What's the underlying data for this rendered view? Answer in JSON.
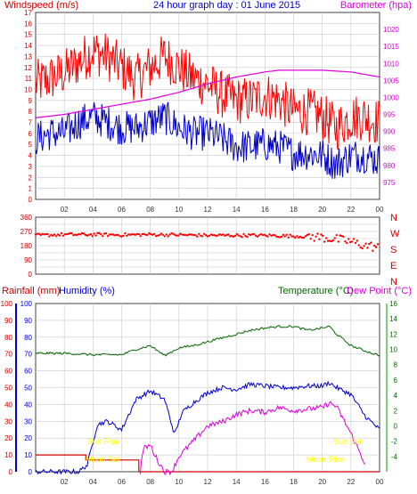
{
  "header": {
    "windspeed_label": "Windspeed (m/s)",
    "title": "24 hour graph day : 01 June 2015",
    "barometer_label": "Barometer (hpa)"
  },
  "bottom_header": {
    "rainfall_label": "Rainfall (mm)",
    "humidity_label": "Humidity (%)",
    "temperature_label": "Temperature (°C)",
    "dewpoint_label": "Dew Point (°C)"
  },
  "annotations": {
    "sunrise": "Sun Rise",
    "moonset": "Moon Set",
    "sunset": "Sun Set",
    "moonrise": "Moon Rise"
  },
  "colors": {
    "wind_gust": "#ff0000",
    "wind_avg": "#0000cc",
    "barometer": "#dd00dd",
    "direction": "#ff0000",
    "rain": "#cc0000",
    "humidity": "#0000cc",
    "temperature": "#006600",
    "dewpoint": "#dd00dd",
    "annotation": "#ffff00",
    "grid": "#c8c8c8"
  },
  "chart_data": [
    {
      "type": "line",
      "title": "24 hour graph day : 01 June 2015",
      "x_tick_labels": [
        "02",
        "04",
        "06",
        "08",
        "10",
        "12",
        "14",
        "16",
        "18",
        "20",
        "22",
        "00"
      ],
      "x_hour_range": [
        0,
        24
      ],
      "y_left": {
        "label": "Windspeed (m/s)",
        "range": [
          0,
          17
        ],
        "ticks": [
          0,
          1,
          2,
          3,
          4,
          5,
          6,
          7,
          8,
          9,
          10,
          11,
          12,
          13,
          14,
          15,
          16,
          17
        ]
      },
      "y_right": {
        "label": "Barometer (hpa)",
        "range": [
          970,
          1025
        ],
        "ticks": [
          975,
          980,
          985,
          990,
          995,
          1000,
          1005,
          1010,
          1015,
          1020
        ]
      },
      "grid": true,
      "series": [
        {
          "name": "Gust",
          "axis": "left",
          "hours": [
            0,
            1,
            2,
            3,
            4,
            5,
            6,
            7,
            8,
            9,
            10,
            11,
            12,
            13,
            14,
            15,
            16,
            17,
            18,
            19,
            20,
            21,
            22,
            23,
            24
          ],
          "values": [
            10.5,
            11,
            11.5,
            12.5,
            13.5,
            13,
            12,
            11,
            12,
            13,
            12,
            11,
            10.5,
            9.5,
            9,
            9,
            9.5,
            9,
            8,
            8,
            7.5,
            6.5,
            7.5,
            7.5,
            7
          ]
        },
        {
          "name": "Average",
          "axis": "left",
          "hours": [
            0,
            1,
            2,
            3,
            4,
            5,
            6,
            7,
            8,
            9,
            10,
            11,
            12,
            13,
            14,
            15,
            16,
            17,
            18,
            19,
            20,
            21,
            22,
            23,
            24
          ],
          "values": [
            5.5,
            6,
            6,
            7,
            7.5,
            7,
            6.5,
            6.5,
            7,
            7.5,
            6.5,
            6,
            6,
            5.5,
            4.8,
            4.8,
            5,
            4.8,
            4.2,
            4.2,
            4,
            3.2,
            4,
            4,
            3.5
          ]
        },
        {
          "name": "Barometer",
          "axis": "right",
          "hours": [
            0,
            2,
            4,
            6,
            8,
            10,
            12,
            14,
            16,
            17,
            18,
            20,
            22,
            24
          ],
          "values": [
            994,
            995,
            996.5,
            998,
            999.5,
            1001.5,
            1004,
            1006,
            1007.5,
            1008,
            1008,
            1008,
            1007.5,
            1006
          ]
        }
      ]
    },
    {
      "type": "scatter",
      "y_range": [
        0,
        360
      ],
      "y_ticks": [
        0,
        45,
        90,
        135,
        180,
        225,
        270,
        315,
        360
      ],
      "y_right_labels": [
        "N",
        "W",
        "S",
        "E",
        "N"
      ],
      "series": [
        {
          "name": "Direction",
          "hours": [
            0,
            2,
            4,
            6,
            8,
            10,
            12,
            14,
            16,
            18,
            19,
            20,
            21,
            22,
            23,
            24
          ],
          "values": [
            245,
            250,
            250,
            248,
            250,
            248,
            245,
            245,
            245,
            240,
            238,
            232,
            220,
            205,
            180,
            170
          ]
        }
      ]
    },
    {
      "type": "line",
      "x_tick_labels": [
        "02",
        "04",
        "06",
        "08",
        "10",
        "12",
        "14",
        "16",
        "18",
        "20",
        "22",
        "00"
      ],
      "y_rain": {
        "label": "Rainfall (mm)",
        "range": [
          0,
          100
        ],
        "ticks": [
          0,
          10,
          20,
          30,
          40,
          50,
          60,
          70,
          80,
          90,
          100
        ]
      },
      "y_humidity": {
        "label": "Humidity (%)",
        "range": [
          0,
          100
        ],
        "ticks": [
          0,
          10,
          20,
          30,
          40,
          50,
          60,
          70,
          80,
          90,
          100
        ]
      },
      "y_temperature": {
        "label": "Temperature (°C)",
        "range": [
          -6,
          16
        ],
        "ticks": [
          -4,
          -2,
          0,
          2,
          4,
          6,
          8,
          10,
          12,
          14,
          16
        ]
      },
      "grid": true,
      "series": [
        {
          "name": "Rainfall",
          "axis": "rain",
          "hours": [
            0,
            3.5,
            3.5,
            7.2,
            7.2,
            24
          ],
          "values": [
            10,
            10,
            7,
            7,
            0,
            0
          ]
        },
        {
          "name": "Humidity",
          "axis": "humidity",
          "hours": [
            0,
            2,
            3,
            3.6,
            4.3,
            5,
            6,
            7,
            8,
            9,
            9.7,
            10.2,
            11,
            12,
            13,
            14,
            15,
            16,
            17,
            18,
            19,
            20,
            20.5,
            21,
            21.5,
            22,
            23,
            24
          ],
          "values": [
            0,
            0,
            0,
            4,
            28,
            30,
            25,
            43,
            48,
            43,
            22,
            35,
            41,
            47,
            50,
            49,
            52,
            51,
            50,
            50,
            51,
            51,
            53,
            50,
            48,
            46,
            33,
            25
          ]
        },
        {
          "name": "Temperature",
          "axis": "temperature",
          "hours": [
            0,
            2,
            4,
            6,
            7,
            8,
            9,
            10,
            11,
            12,
            13,
            14,
            15,
            16,
            17,
            18,
            19,
            20,
            20.5,
            21,
            22,
            23,
            24
          ],
          "values": [
            9.5,
            9.5,
            9.3,
            9.3,
            10,
            10.5,
            9.2,
            10.2,
            10.5,
            11,
            11.5,
            12,
            12.5,
            12.8,
            13,
            13,
            12.5,
            12.8,
            13,
            12,
            10.5,
            9.8,
            9.2
          ]
        },
        {
          "name": "Dew Point",
          "axis": "temperature",
          "hours": [
            7.3,
            7.5,
            8,
            8.5,
            9,
            9.5,
            10,
            11,
            12,
            13,
            14,
            15,
            16,
            17,
            18,
            19,
            20,
            20.5,
            21,
            22,
            22.5,
            23
          ],
          "values": [
            -6,
            -3,
            -2.5,
            -4.5,
            -6,
            -6,
            -4,
            -2,
            0,
            0.5,
            1.5,
            2,
            1.8,
            2.4,
            2,
            2.2,
            2.4,
            3,
            2.5,
            -1,
            -3,
            -5
          ]
        }
      ]
    }
  ]
}
